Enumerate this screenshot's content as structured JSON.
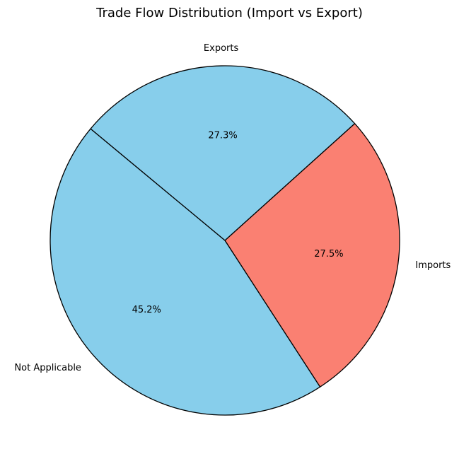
{
  "chart_data": {
    "type": "pie",
    "title": "Trade Flow Distribution (Import vs Export)",
    "slices": [
      {
        "label": "Imports",
        "value": 27.5,
        "pct_label": "27.5%",
        "color": "#FA8072"
      },
      {
        "label": "Exports",
        "value": 27.3,
        "pct_label": "27.3%",
        "color": "#87CEEB"
      },
      {
        "label": "Not Applicable",
        "value": 45.2,
        "pct_label": "45.2%",
        "color": "#87CEEB"
      }
    ],
    "edge_color": "#000000",
    "legend": "none"
  }
}
